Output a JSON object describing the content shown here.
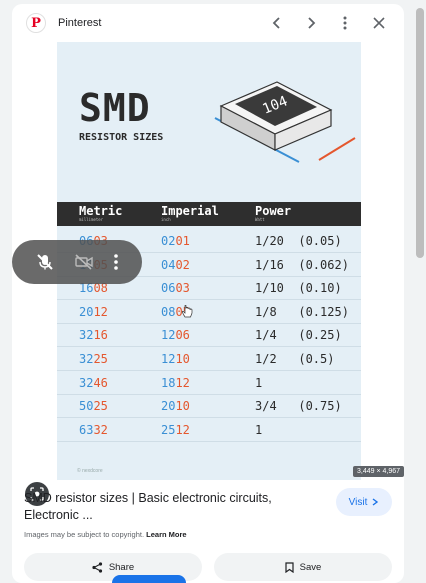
{
  "header": {
    "site_name": "Pinterest"
  },
  "image": {
    "title": "SMD",
    "subtitle": "RESISTOR SIZES",
    "chip_label": "104",
    "columns": [
      {
        "label": "Metric",
        "unit": "millimeter"
      },
      {
        "label": "Imperial",
        "unit": "inch"
      },
      {
        "label": "Power",
        "unit": "Watt"
      }
    ],
    "rows": [
      {
        "m1": "06",
        "m2": "03",
        "i1": "02",
        "i2": "01",
        "power": "1/20  (0.05)"
      },
      {
        "m1": "10",
        "m2": "05",
        "i1": "04",
        "i2": "02",
        "power": "1/16  (0.062)"
      },
      {
        "m1": "16",
        "m2": "08",
        "i1": "06",
        "i2": "03",
        "power": "1/10  (0.10)"
      },
      {
        "m1": "20",
        "m2": "12",
        "i1": "08",
        "i2": "05",
        "power": "1/8   (0.125)"
      },
      {
        "m1": "32",
        "m2": "16",
        "i1": "12",
        "i2": "06",
        "power": "1/4   (0.25)"
      },
      {
        "m1": "32",
        "m2": "25",
        "i1": "12",
        "i2": "10",
        "power": "1/2   (0.5)"
      },
      {
        "m1": "32",
        "m2": "46",
        "i1": "18",
        "i2": "12",
        "power": "1"
      },
      {
        "m1": "50",
        "m2": "25",
        "i1": "20",
        "i2": "10",
        "power": "3/4   (0.75)"
      },
      {
        "m1": "63",
        "m2": "32",
        "i1": "25",
        "i2": "12",
        "power": "1"
      }
    ],
    "watermark": "© nexdcore",
    "dimensions": "3,449 × 4,967"
  },
  "result": {
    "title": "SMD resistor sizes | Basic electronic circuits, Electronic ...",
    "visit_label": "Visit",
    "copyright_text": "Images may be subject to copyright.",
    "learn_more": "Learn More",
    "share_label": "Share",
    "save_label": "Save"
  },
  "colors": {
    "metric_accent": "#3a8fd4",
    "imperial_accent": "#e4572e",
    "brand": "#e60023",
    "link": "#1a73e8"
  },
  "icons": [
    "pinterest-logo",
    "chevron-left-icon",
    "chevron-right-icon",
    "more-vert-icon",
    "close-icon",
    "lens-icon",
    "mic-off-icon",
    "video-off-icon",
    "share-icon",
    "bookmark-icon"
  ]
}
